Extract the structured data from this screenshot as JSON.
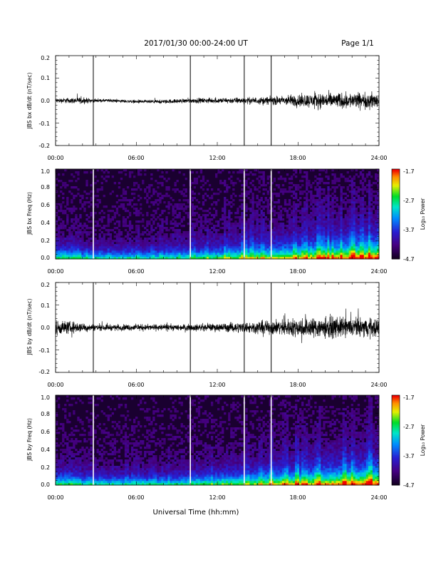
{
  "header": {
    "date_range": "2017/01/30  00:00-24:00 UT",
    "page": "Page 1/1"
  },
  "x_axis": {
    "label": "Universal Time (hh:mm)",
    "ticks": [
      "00:00",
      "06:00",
      "12:00",
      "18:00",
      "24:00"
    ]
  },
  "colorbar": {
    "label": "Log₁₀ Power",
    "ticks": [
      "-1.7",
      "-2.7",
      "-3.7",
      "-4.7"
    ]
  },
  "colors": {
    "trace": "#000000",
    "spectrogram_background": "#1a0030",
    "gap_lines": "#ffffff"
  },
  "chart_data": [
    {
      "type": "line",
      "title": "",
      "ylabel": "JBS bx dB/dt (nT/sec)",
      "xlabel": "",
      "xlim": [
        "00:00",
        "24:00"
      ],
      "ylim": [
        -0.2,
        0.2
      ],
      "yticks": [
        "0.2",
        "0.1",
        "0.0",
        "-0.1",
        "-0.2"
      ],
      "series": [
        {
          "hours": [
            0,
            2,
            3,
            4,
            6,
            8,
            10,
            12,
            14,
            16,
            18,
            20,
            22,
            24
          ],
          "center": [
            0.0,
            0.0,
            0.0,
            0.0,
            -0.005,
            -0.005,
            0.0,
            0.0,
            0.0,
            0.0,
            0.0,
            0.0,
            0.0,
            0.0
          ],
          "amplitude": [
            0.015,
            0.02,
            0.01,
            0.01,
            0.01,
            0.012,
            0.015,
            0.017,
            0.02,
            0.025,
            0.04,
            0.05,
            0.05,
            0.05
          ]
        }
      ],
      "spikes_hours": [
        2.8,
        10.0,
        14.0,
        16.0
      ],
      "grid": false
    },
    {
      "type": "heatmap",
      "title": "",
      "ylabel": "JBS bx Freq (Hz)",
      "xlabel": "",
      "xlim": [
        "00:00",
        "24:00"
      ],
      "ylim": [
        0.0,
        1.0
      ],
      "yticks": [
        "1.0",
        "0.8",
        "0.6",
        "0.4",
        "0.2",
        "0.0"
      ],
      "zlim": [
        -4.7,
        -1.7
      ],
      "gaps_hours": [
        2.8,
        10.0,
        14.0,
        16.0
      ]
    },
    {
      "type": "line",
      "title": "",
      "ylabel": "JBS by dB/dt (nT/sec)",
      "xlabel": "",
      "xlim": [
        "00:00",
        "24:00"
      ],
      "ylim": [
        -0.2,
        0.2
      ],
      "yticks": [
        "0.2",
        "0.1",
        "0.0",
        "-0.1",
        "-0.2"
      ],
      "series": [
        {
          "hours": [
            0,
            2,
            3,
            4,
            6,
            8,
            10,
            12,
            14,
            16,
            18,
            20,
            22,
            24
          ],
          "center": [
            0.0,
            0.0,
            0.0,
            0.0,
            0.0,
            0.0,
            0.0,
            0.0,
            0.0,
            0.0,
            0.0,
            0.0,
            0.0,
            0.0
          ],
          "amplitude": [
            0.05,
            0.03,
            0.02,
            0.02,
            0.02,
            0.02,
            0.02,
            0.025,
            0.035,
            0.045,
            0.06,
            0.07,
            0.06,
            0.06
          ]
        }
      ],
      "spikes_hours": [
        2.8,
        10.0,
        14.0,
        16.0
      ],
      "grid": false
    },
    {
      "type": "heatmap",
      "title": "",
      "ylabel": "JBS by Freq (Hz)",
      "xlabel": "Universal Time (hh:mm)",
      "xlim": [
        "00:00",
        "24:00"
      ],
      "ylim": [
        0.0,
        1.0
      ],
      "yticks": [
        "1.0",
        "0.8",
        "0.6",
        "0.4",
        "0.2",
        "0.0"
      ],
      "zlim": [
        -4.7,
        -1.7
      ],
      "gaps_hours": [
        2.8,
        10.0,
        14.0,
        16.0
      ]
    }
  ]
}
